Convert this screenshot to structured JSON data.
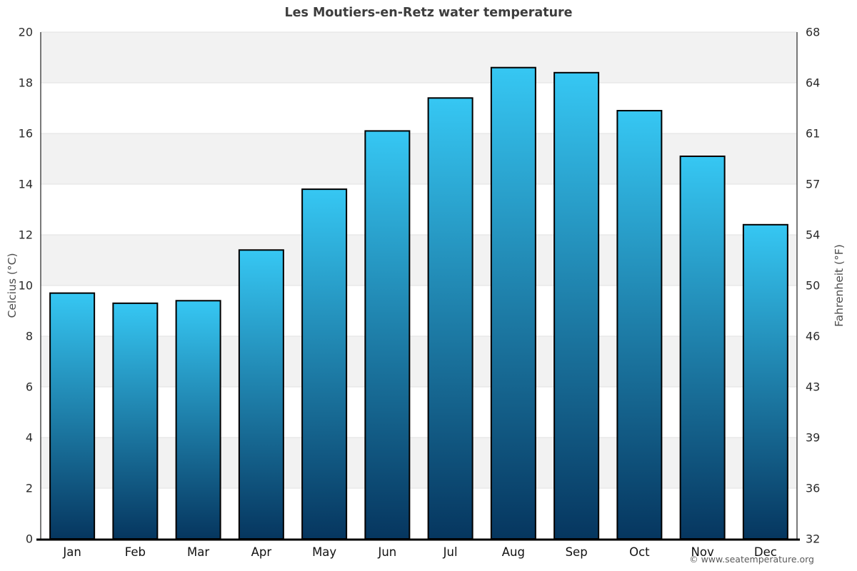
{
  "title": "Les Moutiers-en-Retz water temperature",
  "copyright": "© www.seatemperature.org",
  "axes": {
    "left_title": "Celcius (°C)",
    "right_title": "Fahrenheit (°F)"
  },
  "chart_data": {
    "type": "bar",
    "title": "Les Moutiers-en-Retz water temperature",
    "categories": [
      "Jan",
      "Feb",
      "Mar",
      "Apr",
      "May",
      "Jun",
      "Jul",
      "Aug",
      "Sep",
      "Oct",
      "Nov",
      "Dec"
    ],
    "values": [
      9.7,
      9.3,
      9.4,
      11.4,
      13.8,
      16.1,
      17.4,
      18.6,
      18.4,
      16.9,
      15.1,
      12.4
    ],
    "unit": "°C",
    "ylabel_left": "Celcius (°C)",
    "ylabel_right": "Fahrenheit (°F)",
    "ylim_celsius": [
      0,
      20
    ],
    "yticks_celsius": [
      0,
      2,
      4,
      6,
      8,
      10,
      12,
      14,
      16,
      18,
      20
    ],
    "yticks_fahrenheit": [
      32,
      36,
      39,
      43,
      46,
      50,
      54,
      57,
      61,
      64,
      68
    ],
    "grid": true,
    "band_rows_celsius": [
      [
        2,
        4
      ],
      [
        6,
        8
      ],
      [
        10,
        12
      ],
      [
        14,
        16
      ],
      [
        18,
        20
      ]
    ],
    "legend": "none",
    "colors": {
      "bar_gradient_top": "#36c7f3",
      "bar_gradient_bottom": "#06365f",
      "bar_border": "#000000",
      "band": "#f2f2f2",
      "gridline": "#e2e2e2",
      "side_axis_line": "#4d4d4d",
      "bottom_axis_line": "#000000"
    }
  }
}
